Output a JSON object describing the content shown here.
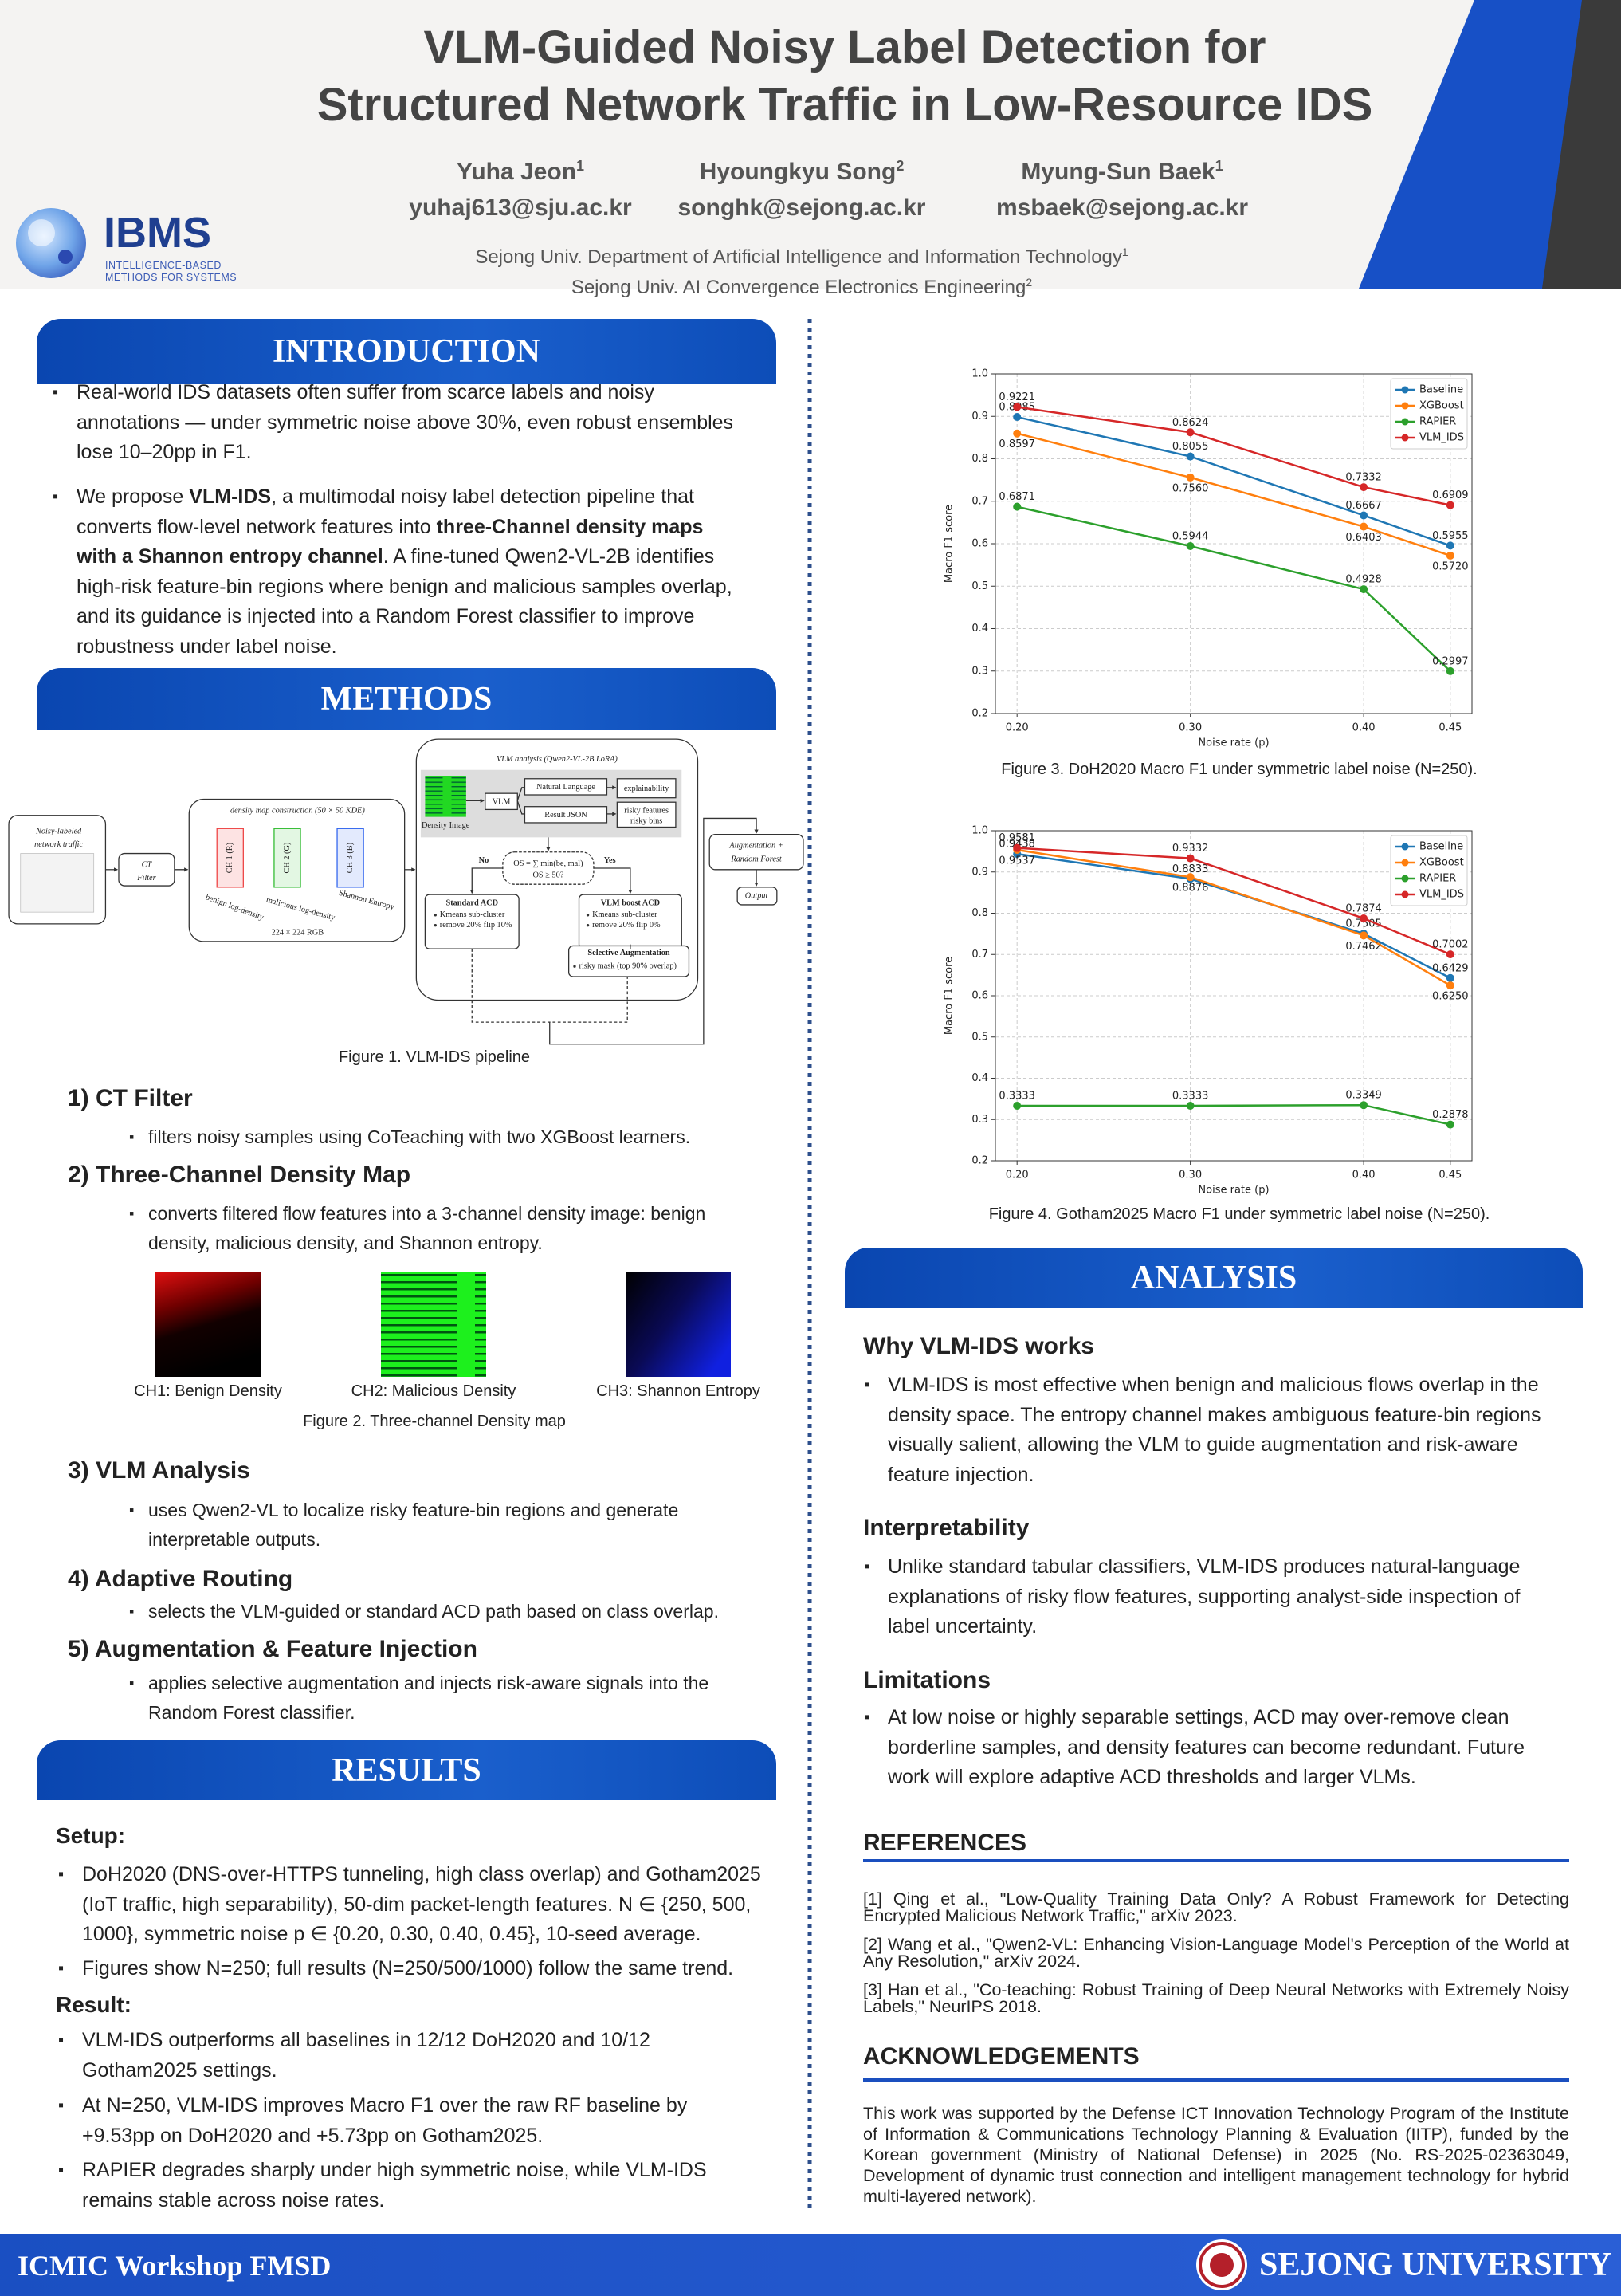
{
  "header": {
    "title_lines": [
      "VLM-Guided Noisy Label Detection for",
      "Structured Network Traffic in Low-Resource IDS"
    ],
    "authors": [
      {
        "name": "Yuha Jeon",
        "sup": "1",
        "email": "yuhaj613@sju.ac.kr"
      },
      {
        "name": "Hyoungkyu Song",
        "sup": "2",
        "email": "songhk@sejong.ac.kr"
      },
      {
        "name": "Myung-Sun Baek",
        "sup": "1",
        "email": "msbaek@sejong.ac.kr"
      }
    ],
    "affiliations": [
      {
        "text": "Sejong Univ. Department of Artificial Intelligence and Information Technology",
        "sup": "1"
      },
      {
        "text": "Sejong Univ. AI Convergence Electronics Engineering",
        "sup": "2"
      }
    ],
    "logo": {
      "name": "IBMS",
      "tagline_lines": [
        "INTELLIGENCE-BASED",
        "METHODS FOR SYSTEMS"
      ]
    }
  },
  "introduction": {
    "title": "INTRODUCTION",
    "bullets": [
      "Real-world IDS datasets often suffer from scarce labels and noisy annotations — under symmetric noise above 30%, even robust ensembles lose 10–20pp in F1.",
      [
        "We propose ",
        {
          "bold": "VLM-IDS"
        },
        ", a multimodal noisy label detection pipeline that converts flow-level network features into ",
        {
          "bold": "three-Channel density maps with a Shannon entropy channel"
        },
        ". A fine-tuned Qwen2-VL-2B identifies high-risk feature-bin regions where benign and malicious samples overlap, and its guidance is injected into a Random Forest classifier to improve robustness under label noise."
      ]
    ]
  },
  "methods": {
    "title": "METHODS",
    "figure1": {
      "caption": "Figure 1. VLM-IDS pipeline",
      "labels": [
        "Noisy-labeled",
        "network traffic",
        "CT",
        "Filter",
        "density map construction (50 × 50 KDE)",
        "CH 1 (R)",
        "CH 2 (G)",
        "CH 3 (B)",
        "benign log-density",
        "malicious log-density",
        "Shannon Entropy",
        "224 × 224 RGB",
        "VLM analysis (Qwen2-VL-2B LoRA)",
        "Density Image",
        "VLM",
        "Natural Language",
        "Result JSON",
        "explainability",
        "risky features",
        "risky bins",
        "No",
        "Yes",
        "OS = ∑ min(be, mal)",
        "OS ≥ 50?",
        "Standard ACD",
        "Kmeans sub-cluster",
        "remove 20% flip 10%",
        "VLM boost ACD",
        "Kmeans sub-cluster",
        "remove 20% flip 0%",
        "Selective Augmentation",
        "risky mask (top 90% overlap)",
        "Augmentation +",
        "Random Forest",
        "Output"
      ]
    },
    "subsections": [
      {
        "title": "1) CT Filter",
        "bullet": "filters noisy samples using CoTeaching with two XGBoost learners."
      },
      {
        "title": "2) Three-Channel Density Map",
        "bullet": "converts filtered flow features into a 3-channel density image: benign density, malicious density, and Shannon entropy."
      },
      {
        "title": "3) VLM Analysis",
        "bullet": "uses Qwen2-VL to localize risky feature-bin regions and generate interpretable outputs."
      },
      {
        "title": "4) Adaptive Routing",
        "bullet": "selects the VLM-guided or standard ACD path based on class overlap."
      },
      {
        "title": "5) Augmentation & Feature Injection",
        "bullet": "applies selective augmentation and injects risk-aware signals into the Random Forest classifier."
      }
    ],
    "figure2": {
      "image_captions": [
        "CH1: Benign Density",
        "CH2: Malicious Density",
        "CH3: Shannon Entropy"
      ],
      "caption": "Figure 2. Three-channel Density map"
    }
  },
  "results": {
    "title": "RESULTS",
    "setup_title": "Setup:",
    "setup_bullets": [
      "DoH2020 (DNS-over-HTTPS tunneling, high class overlap) and Gotham2025 (IoT traffic, high separability), 50-dim packet-length features. N ∈ {250, 500, 1000}, symmetric noise p ∈ {0.20, 0.30, 0.40, 0.45}, 10-seed average.",
      "Figures show N=250; full results (N=250/500/1000) follow the same trend."
    ],
    "result_title": "Result:",
    "result_bullets": [
      "VLM-IDS outperforms all baselines in 12/12 DoH2020 and 10/12 Gotham2025 settings.",
      "At N=250, VLM-IDS improves Macro F1 over the raw RF baseline by +9.53pp on DoH2020 and +5.73pp on Gotham2025.",
      "RAPIER degrades sharply under high symmetric noise, while VLM-IDS remains stable across noise rates."
    ]
  },
  "chart_data": [
    {
      "type": "line",
      "caption": "Figure 3. DoH2020 Macro F1 under symmetric label noise (N=250).",
      "xlabel": "Noise rate (p)",
      "ylabel": "Macro F1 score",
      "x": [
        0.2,
        0.3,
        0.4,
        0.45
      ],
      "xlim": [
        0.1875,
        0.4625
      ],
      "xticks": [
        {
          "value": 0.2,
          "label": "0.20"
        },
        {
          "value": 0.3,
          "label": "0.30"
        },
        {
          "value": 0.4,
          "label": "0.40"
        },
        0.45
      ],
      "ylim": [
        0.2,
        1.0
      ],
      "yticks": [
        0.2,
        0.3,
        0.4,
        0.5,
        0.6,
        0.7,
        0.8,
        0.9,
        {
          "value": 1.0,
          "label": "1.0"
        }
      ],
      "grid": true,
      "legend": "upper right",
      "series": [
        {
          "name": "Baseline",
          "color": "#1f77b4",
          "values": [
            0.8985,
            0.8055,
            0.6667,
            0.5955
          ],
          "value_labels": [
            "0.8985",
            "0.8055",
            "0.6667",
            "0.5955"
          ]
        },
        {
          "name": "XGBoost",
          "color": "#ff7f0e",
          "values": [
            0.8597,
            0.756,
            0.6403,
            0.572
          ],
          "value_labels": [
            "0.8597",
            "0.7560",
            "0.6403",
            "0.5720"
          ]
        },
        {
          "name": "RAPIER",
          "color": "#2ca02c",
          "values": [
            0.6871,
            0.5944,
            0.4928,
            0.2997
          ],
          "value_labels": [
            "0.6871",
            "0.5944",
            "0.4928",
            "0.2997"
          ]
        },
        {
          "name": "VLM_IDS",
          "color": "#d62728",
          "values": [
            0.9221,
            0.8624,
            0.7332,
            0.6909
          ],
          "value_labels": [
            "0.9221",
            "0.8624",
            "0.7332",
            "0.6909"
          ]
        }
      ]
    },
    {
      "type": "line",
      "caption": "Figure 4. Gotham2025 Macro F1 under symmetric label noise (N=250).",
      "xlabel": "Noise rate (p)",
      "ylabel": "Macro F1 score",
      "x": [
        0.2,
        0.3,
        0.4,
        0.45
      ],
      "xlim": [
        0.1875,
        0.4625
      ],
      "xticks": [
        {
          "value": 0.2,
          "label": "0.20"
        },
        {
          "value": 0.3,
          "label": "0.30"
        },
        {
          "value": 0.4,
          "label": "0.40"
        },
        0.45
      ],
      "ylim": [
        0.2,
        1.0
      ],
      "yticks": [
        0.2,
        0.3,
        0.4,
        0.5,
        0.6,
        0.7,
        0.8,
        0.9,
        {
          "value": 1.0,
          "label": "1.0"
        }
      ],
      "grid": true,
      "legend": "upper right",
      "series": [
        {
          "name": "Baseline",
          "color": "#1f77b4",
          "values": [
            0.9438,
            0.8833,
            0.7505,
            0.6429
          ],
          "value_labels": [
            "0.9438",
            "0.8833",
            "0.7505",
            "0.6429"
          ]
        },
        {
          "name": "XGBoost",
          "color": "#ff7f0e",
          "values": [
            0.9537,
            0.8876,
            0.7462,
            0.625
          ],
          "value_labels": [
            "0.9537",
            "0.8876",
            "0.7462",
            "0.6250"
          ]
        },
        {
          "name": "RAPIER",
          "color": "#2ca02c",
          "values": [
            0.3333,
            0.3333,
            0.3349,
            0.2878
          ],
          "value_labels": [
            "0.3333",
            "0.3333",
            "0.3349",
            "0.2878"
          ]
        },
        {
          "name": "VLM_IDS",
          "color": "#d62728",
          "values": [
            0.9581,
            0.9332,
            0.7874,
            0.7002
          ],
          "value_labels": [
            "0.9581",
            "0.9332",
            "0.7874",
            "0.7002"
          ]
        }
      ]
    }
  ],
  "analysis": {
    "title": "ANALYSIS",
    "subsections": [
      {
        "title": "Why VLM-IDS works",
        "bullet": "VLM-IDS is most effective when benign and malicious flows overlap in the density space. The entropy channel makes ambiguous feature-bin regions visually salient, allowing the VLM to guide augmentation and risk-aware feature injection."
      },
      {
        "title": "Interpretability",
        "bullet": "Unlike standard tabular classifiers, VLM-IDS produces natural-language explanations of risky flow features, supporting analyst-side inspection of label uncertainty."
      },
      {
        "title": "Limitations",
        "bullet": "At low noise or highly separable settings, ACD may over-remove clean borderline samples, and density features can become redundant. Future work will explore adaptive ACD thresholds and larger VLMs."
      }
    ]
  },
  "references": {
    "title": "REFERENCES",
    "items": [
      "[1] Qing et al., \"Low-Quality Training Data Only? A Robust Framework for Detecting Encrypted Malicious Network Traffic,\" arXiv 2023.",
      "[2] Wang et al., \"Qwen2-VL: Enhancing Vision-Language Model's Perception of the World at Any Resolution,\" arXiv 2024.",
      "[3] Han et al., \"Co-teaching: Robust Training of Deep Neural Networks with Extremely Noisy Labels,\" NeurIPS 2018."
    ]
  },
  "acknowledgements": {
    "title": "ACKNOWLEDGEMENTS",
    "text": "This work was supported by the Defense ICT Innovation Technology Program of the Institute of Information & Communications Technology Planning & Evaluation (IITP), funded by the Korean government (Ministry of National Defense) in 2025 (No. RS-2025-02363049, Development of dynamic trust connection and intelligent management technology for hybrid multi-layered network)."
  },
  "footer": {
    "left": "ICMIC Workshop FMSD",
    "right": "SEJONG UNIVERSITY"
  }
}
